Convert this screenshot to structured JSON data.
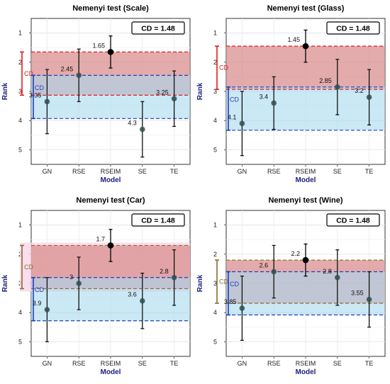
{
  "chart_data": [
    {
      "type": "scatter",
      "title": "Nemenyi test (Scale)",
      "cd_label": "CD = 1.48",
      "cd_bracket_text": "CD",
      "xlabel": "Model",
      "ylabel": "Rank",
      "categories": [
        "GN",
        "RSE",
        "RSEIM",
        "SE",
        "TE"
      ],
      "y_ticks": [
        "1",
        "2",
        "3",
        "4",
        "5"
      ],
      "ranks": [
        3.35,
        2.45,
        1.65,
        4.3,
        3.25
      ],
      "rank_labels": [
        "3.35",
        "2.45",
        "1.65",
        "4.3",
        "3.25"
      ],
      "ylim": [
        0.5,
        5.5
      ],
      "y_reversed": true,
      "best_index": 2,
      "red_band": [
        1.65,
        3.13
      ],
      "blue_band": [
        2.45,
        3.93
      ],
      "highlight_band": false,
      "colors": {
        "best": "#000000",
        "point": "#2f4f4f",
        "red_band": "#d98f8f",
        "blue_band": "#a9d9ee",
        "red_line": "#e41a1c",
        "blue_line": "#1f3fbf"
      }
    },
    {
      "type": "scatter",
      "title": "Nemenyi test (Glass)",
      "cd_label": "CD = 1.48",
      "cd_bracket_text": "CD",
      "xlabel": "Model",
      "ylabel": "Rank",
      "categories": [
        "GN",
        "RSE",
        "RSEIM",
        "SE",
        "TE"
      ],
      "y_ticks": [
        "1",
        "2",
        "3",
        "4",
        "5"
      ],
      "ranks": [
        4.1,
        3.4,
        1.45,
        2.85,
        3.2
      ],
      "rank_labels": [
        "4.1",
        "3.4",
        "1.45",
        "2.85",
        "3.2"
      ],
      "ylim": [
        0.5,
        5.5
      ],
      "y_reversed": true,
      "best_index": 2,
      "red_band": [
        1.45,
        2.93
      ],
      "blue_band": [
        2.85,
        4.33
      ],
      "highlight_band": false,
      "colors": {
        "best": "#000000",
        "point": "#2f4f4f",
        "red_band": "#d98f8f",
        "blue_band": "#a9d9ee",
        "red_line": "#e41a1c",
        "blue_line": "#1f3fbf"
      }
    },
    {
      "type": "scatter",
      "title": "Nemenyi test (Car)",
      "cd_label": "CD = 1.48",
      "cd_bracket_text": "CD",
      "xlabel": "Model",
      "ylabel": "Rank",
      "categories": [
        "GN",
        "RSE",
        "RSEIM",
        "SE",
        "TE"
      ],
      "y_ticks": [
        "1",
        "2",
        "3",
        "4",
        "5"
      ],
      "ranks": [
        3.9,
        3.0,
        1.7,
        3.6,
        2.8
      ],
      "rank_labels": [
        "3.9",
        "3",
        "1.7",
        "3.6",
        "2.8"
      ],
      "ylim": [
        0.5,
        5.5
      ],
      "y_reversed": true,
      "best_index": 2,
      "red_band": [
        1.7,
        3.18
      ],
      "blue_band": [
        2.8,
        4.28
      ],
      "highlight_band": true,
      "colors": {
        "best": "#000000",
        "point": "#2f4f4f",
        "red_band": "#d98f8f",
        "blue_band": "#a9d9ee",
        "red_line": "#8b6b2e",
        "blue_line": "#1f3fbf"
      }
    },
    {
      "type": "scatter",
      "title": "Nemenyi test (Wine)",
      "cd_label": "CD = 1.48",
      "cd_bracket_text": "CD",
      "xlabel": "Model",
      "ylabel": "Rank",
      "categories": [
        "GN",
        "RSE",
        "RSEIM",
        "SE",
        "TE"
      ],
      "y_ticks": [
        "1",
        "2",
        "3",
        "4",
        "5"
      ],
      "ranks": [
        3.85,
        2.6,
        2.2,
        2.8,
        3.55
      ],
      "rank_labels": [
        "3.85",
        "2.6",
        "2.2",
        "2.8",
        "3.55"
      ],
      "ylim": [
        0.5,
        5.5
      ],
      "y_reversed": true,
      "best_index": 2,
      "red_band": [
        2.2,
        3.68
      ],
      "blue_band": [
        2.6,
        4.08
      ],
      "highlight_band": false,
      "colors": {
        "best": "#000000",
        "point": "#2f4f4f",
        "red_band": "#d98f8f",
        "blue_band": "#a9d9ee",
        "red_line": "#8b6b2e",
        "blue_line": "#1f3fbf"
      }
    }
  ]
}
